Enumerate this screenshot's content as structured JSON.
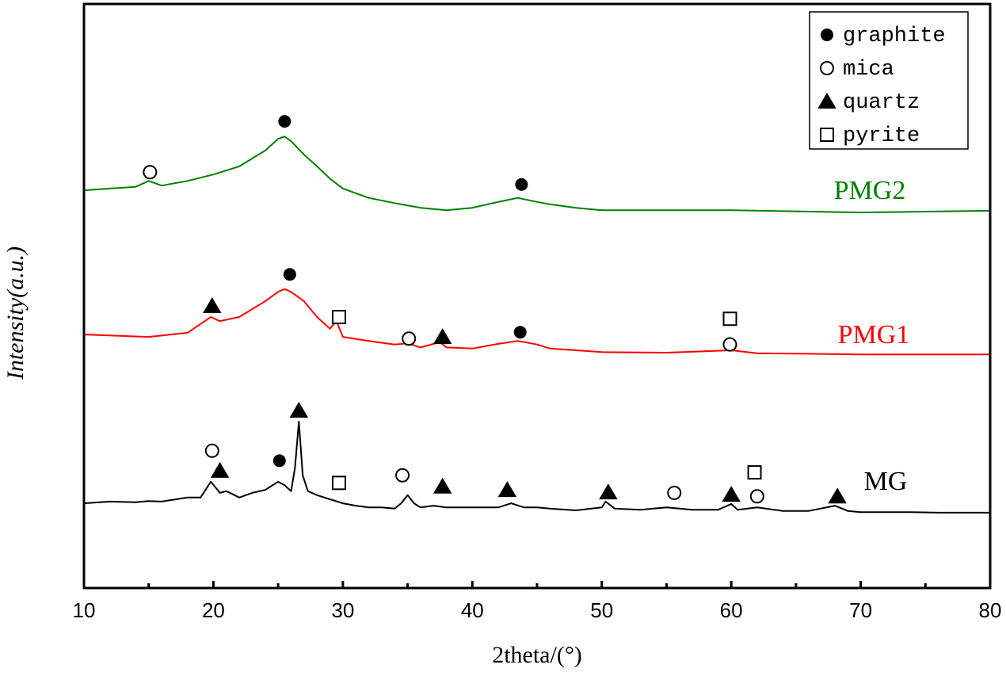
{
  "chart_data": {
    "type": "line",
    "xlabel": "2theta/(°)",
    "ylabel": "Intensity(a.u.)",
    "xlim": [
      10,
      80
    ],
    "xticks": [
      10,
      20,
      30,
      40,
      50,
      60,
      70,
      80
    ],
    "xminorticks": [
      15,
      25,
      35,
      45,
      55,
      65,
      75
    ],
    "ylim": [
      0,
      100
    ],
    "series": [
      {
        "name": "MG",
        "color": "#000000",
        "x": [
          10,
          12,
          14,
          15,
          16,
          18,
          19,
          19.8,
          20.5,
          21,
          22,
          23,
          24,
          25,
          25.5,
          26,
          26.3,
          26.6,
          26.9,
          27.3,
          28,
          29,
          30,
          31,
          32,
          33,
          34,
          34.5,
          35,
          35.5,
          36,
          37,
          38,
          40,
          42,
          43,
          44,
          45,
          46,
          48,
          50,
          50.3,
          51,
          53,
          55,
          57,
          59,
          60,
          60.5,
          62,
          64,
          66,
          68,
          69,
          70,
          72,
          74,
          76,
          78,
          80
        ],
        "values": [
          14.5,
          14.8,
          14.7,
          14.9,
          14.8,
          15.5,
          15.5,
          18.2,
          16.3,
          16.6,
          15.5,
          16.3,
          16.8,
          18.2,
          17.6,
          16.6,
          20.6,
          28.5,
          19.3,
          16.6,
          15.9,
          15.2,
          14.5,
          14.1,
          13.8,
          13.8,
          13.6,
          14.5,
          15.9,
          14.5,
          13.8,
          14.1,
          13.8,
          13.8,
          13.8,
          14.5,
          13.8,
          13.8,
          13.6,
          13.3,
          13.8,
          14.8,
          13.6,
          13.4,
          13.8,
          13.4,
          13.4,
          14.4,
          13.4,
          13.8,
          13.2,
          13.2,
          14.1,
          13.2,
          13.0,
          13.0,
          13.0,
          12.9,
          12.9,
          12.9
        ]
      },
      {
        "name": "PMG1",
        "color": "#ff0000",
        "x": [
          10,
          15,
          18,
          19.8,
          20.5,
          22,
          24,
          25,
          25.5,
          26,
          27,
          28,
          29,
          29.5,
          30,
          32,
          34,
          35,
          36,
          37.5,
          38,
          40,
          42,
          43.5,
          45,
          46,
          48,
          50,
          55,
          60,
          62,
          70,
          80
        ],
        "values": [
          43.4,
          43.0,
          43.7,
          46.4,
          45.7,
          46.4,
          49.1,
          50.7,
          51.2,
          50.7,
          49.1,
          46.4,
          44.4,
          45.7,
          43.0,
          42.3,
          41.7,
          41.9,
          41.2,
          42.1,
          41.2,
          41.0,
          41.8,
          42.3,
          41.7,
          41.0,
          40.7,
          40.4,
          40.3,
          40.7,
          40.2,
          40.0,
          40.0
        ]
      },
      {
        "name": "PMG2",
        "color": "#008000",
        "x": [
          10,
          12,
          14,
          15,
          16,
          18,
          20,
          22,
          24,
          25,
          25.5,
          26,
          27,
          28,
          29,
          30,
          32,
          34,
          36,
          38,
          40,
          42,
          43.5,
          45,
          46,
          48,
          50,
          55,
          60,
          70,
          80
        ],
        "values": [
          68.1,
          68.4,
          68.7,
          69.7,
          68.9,
          69.7,
          70.8,
          72.2,
          74.9,
          76.9,
          77.3,
          76.5,
          74.2,
          72.2,
          70.1,
          68.4,
          66.8,
          65.9,
          65.1,
          64.7,
          65.1,
          66.1,
          66.8,
          66.1,
          65.7,
          65.1,
          64.7,
          64.7,
          64.7,
          64.3,
          64.6
        ]
      }
    ],
    "phases": [
      {
        "name": "graphite",
        "symbol": "filled-circle",
        "points": [
          [
            25.5,
            79.9
          ],
          [
            43.8,
            69.1
          ],
          [
            25.9,
            53.7
          ],
          [
            43.7,
            43.8
          ],
          [
            25.1,
            21.8
          ]
        ]
      },
      {
        "name": "mica",
        "symbol": "open-circle",
        "points": [
          [
            15.1,
            71.2
          ],
          [
            35.1,
            42.7
          ],
          [
            59.9,
            41.7
          ],
          [
            19.9,
            23.5
          ],
          [
            34.6,
            19.3
          ],
          [
            55.6,
            16.3
          ],
          [
            62.0,
            15.7
          ]
        ]
      },
      {
        "name": "quartz",
        "symbol": "filled-triangle",
        "points": [
          [
            19.9,
            48.3
          ],
          [
            37.7,
            43.0
          ],
          [
            20.5,
            20.1
          ],
          [
            26.6,
            30.4
          ],
          [
            37.7,
            17.4
          ],
          [
            42.7,
            16.8
          ],
          [
            50.5,
            16.4
          ],
          [
            60.0,
            16.0
          ],
          [
            68.2,
            15.7
          ]
        ]
      },
      {
        "name": "pyrite",
        "symbol": "open-square",
        "points": [
          [
            29.7,
            46.4
          ],
          [
            59.9,
            46.1
          ],
          [
            29.7,
            18.0
          ],
          [
            61.8,
            19.8
          ]
        ]
      }
    ],
    "legend": "upper right"
  }
}
